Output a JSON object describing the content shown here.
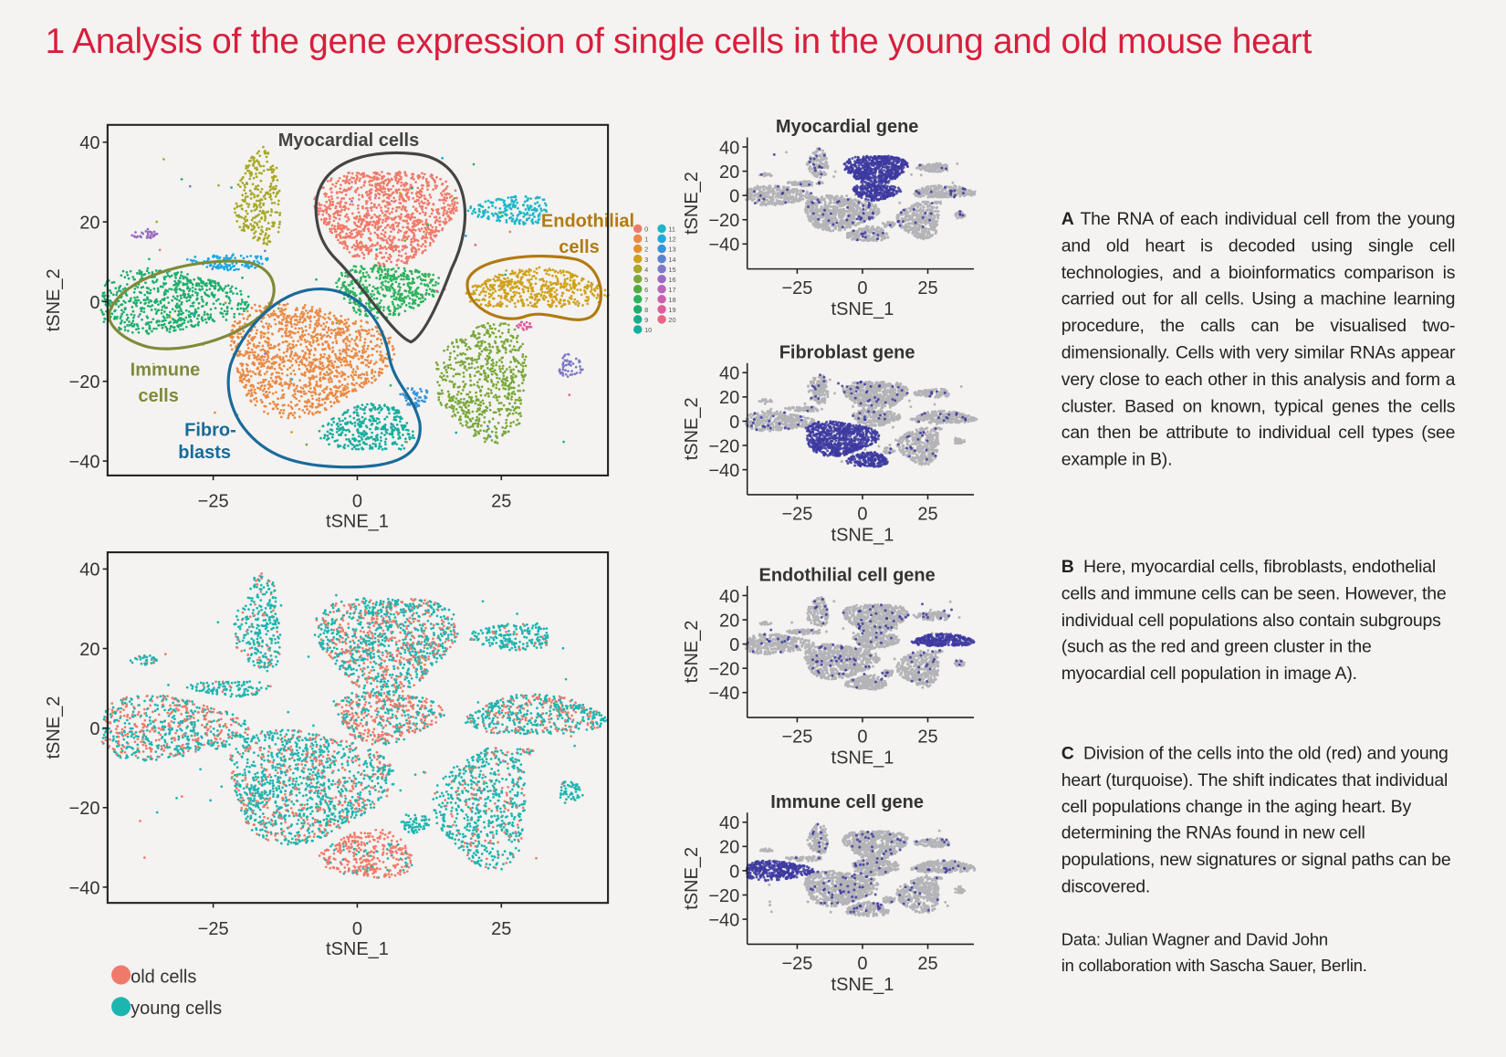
{
  "title": "1 Analysis of the gene expression of single cells in the young and old mouse heart",
  "text": {
    "a_label": "A",
    "a_body": "The RNA of each individual cell from the young and old heart is decoded using single cell technologies, and a bioinformatics comparison is carried out for all cells. Using a machine learning procedure, the calls can be visualised two-dimensionally. Cells with very similar RNAs appear very close to each other in this analysis and form a cluster. Based on known, typical genes the cells can then be attribute to individual cell types (see example in B).",
    "b_label": "B",
    "b_body": "Here, myocardial cells, fibroblasts, endothelial cells and immune cells can be seen. However, the individual cell populations also contain subgroups (such as the red and green cluster in the myocardial cell population in image A).",
    "c_label": "C",
    "c_body": "Division of the cells into the old (red) and young heart (turquoise). The shift indicates that individual cell populations change in the aging heart. By determining the RNAs found in new cell populations, new signatures or signal paths can be discovered.",
    "credit_1": "Data: Julian Wagner and David John",
    "credit_2": "in collaboration with Sascha Sauer, Berlin."
  },
  "colors": {
    "title": "#d81e3c",
    "old": "#f07a6a",
    "young": "#1db5b0",
    "highlight": "#3d3aa0",
    "background_points": "#b4b4b8"
  },
  "chart_data": [
    {
      "id": "A",
      "type": "scatter",
      "xlabel": "tSNE_1",
      "ylabel": "tSNE_2",
      "xlim": [
        -43,
        44
      ],
      "ylim": [
        -44,
        44
      ],
      "xticks": [
        "-25",
        "0",
        "25"
      ],
      "xtick_values": [
        -25,
        0,
        25
      ],
      "yticks": [
        "40",
        "20",
        "0",
        "-20",
        "-40"
      ],
      "ytick_values": [
        40,
        20,
        0,
        -20,
        -40
      ],
      "annotations": {
        "myocardial": "Myocardial cells",
        "endo_1": "Endothilial",
        "endo_2": "cells",
        "immune_1": "Immune",
        "immune_2": "cells",
        "fibro_1": "Fibro-",
        "fibro_2": "blasts"
      },
      "legend": {
        "labels": [
          "0",
          "1",
          "2",
          "3",
          "4",
          "5",
          "6",
          "7",
          "8",
          "9",
          "10",
          "11",
          "12",
          "13",
          "14",
          "15",
          "16",
          "17",
          "18",
          "19",
          "20"
        ],
        "colors": [
          "#f07a6a",
          "#ea8a45",
          "#e0922c",
          "#cfa11c",
          "#a8a829",
          "#7aa83a",
          "#50ac3e",
          "#2db35e",
          "#1fae6e",
          "#19ad88",
          "#17ad9e",
          "#1db6c8",
          "#1ea9e0",
          "#3a93d8",
          "#5c83d0",
          "#7d7ac4",
          "#9a6cc4",
          "#b766be",
          "#cc5fae",
          "#e05c9c",
          "#ec6484"
        ]
      },
      "clusters": [
        {
          "id": 0,
          "cx": 5,
          "cy": 22,
          "rx": 12,
          "ry": 12,
          "n": 1100,
          "old": 0.35
        },
        {
          "id": 7,
          "cx": 5,
          "cy": 3,
          "rx": 9,
          "ry": 6.5,
          "n": 450,
          "old": 0.55
        },
        {
          "id": 1,
          "cx": -9,
          "cy": -14,
          "rx": 14,
          "ry": 14,
          "n": 1300,
          "old": 0.3
        },
        {
          "id": 10,
          "cx": 2,
          "cy": -32,
          "rx": 8,
          "ry": 6,
          "n": 350,
          "old": 0.85
        },
        {
          "id": 8,
          "cx": -33,
          "cy": 0,
          "rx": 13,
          "ry": 8,
          "n": 650,
          "old": 0.45
        },
        {
          "id": 3,
          "cx": 31,
          "cy": 3,
          "rx": 12,
          "ry": 5,
          "n": 500,
          "old": 0.3
        },
        {
          "id": 5,
          "cx": 22,
          "cy": -20,
          "rx": 8,
          "ry": 15,
          "n": 650,
          "old": 0.2
        },
        {
          "id": 4,
          "cx": -17,
          "cy": 26,
          "rx": 4,
          "ry": 12,
          "n": 280,
          "old": 0.15
        },
        {
          "id": 11,
          "cx": 27,
          "cy": 23,
          "rx": 7,
          "ry": 3.5,
          "n": 200,
          "old": 0.1
        },
        {
          "id": 12,
          "cx": -22,
          "cy": 10,
          "rx": 7,
          "ry": 2,
          "n": 120,
          "old": 0.1
        },
        {
          "id": 15,
          "cx": 37,
          "cy": -16,
          "rx": 2,
          "ry": 3,
          "n": 50,
          "old": 0.1
        },
        {
          "id": 16,
          "cx": -37,
          "cy": 17,
          "rx": 2.5,
          "ry": 1.2,
          "n": 30,
          "old": 0.1
        },
        {
          "id": 13,
          "cx": 10,
          "cy": -24,
          "rx": 2.5,
          "ry": 2.5,
          "n": 60,
          "old": 0.1
        },
        {
          "id": 19,
          "cx": 29,
          "cy": -6,
          "rx": 1.5,
          "ry": 1,
          "n": 20,
          "old": 0.5
        }
      ]
    },
    {
      "id": "C",
      "type": "scatter",
      "xlabel": "tSNE_1",
      "ylabel": "tSNE_2",
      "xticks": [
        "-25",
        "0",
        "25"
      ],
      "yticks": [
        "40",
        "20",
        "0",
        "-20",
        "-40"
      ],
      "legend": [
        {
          "label": "old cells",
          "color": "#f07a6a"
        },
        {
          "label": "young cells",
          "color": "#1db5b0"
        }
      ]
    },
    {
      "id": "B1",
      "type": "scatter",
      "title": "Myocardial gene",
      "highlight_cluster": [
        0,
        7
      ],
      "xlabel": "tSNE_1",
      "ylabel": "tSNE_2",
      "xticks": [
        "-25",
        "0",
        "25"
      ],
      "yticks": [
        "40",
        "20",
        "0",
        "-20",
        "-40"
      ]
    },
    {
      "id": "B2",
      "type": "scatter",
      "title": "Fibroblast gene",
      "highlight_cluster": [
        1,
        10
      ],
      "xlabel": "tSNE_1",
      "ylabel": "tSNE_2",
      "xticks": [
        "-25",
        "0",
        "25"
      ],
      "yticks": [
        "40",
        "20",
        "0",
        "-20",
        "-40"
      ]
    },
    {
      "id": "B3",
      "type": "scatter",
      "title": "Endothilial cell gene",
      "highlight_cluster": [
        3
      ],
      "xlabel": "tSNE_1",
      "ylabel": "tSNE_2",
      "xticks": [
        "-25",
        "0",
        "25"
      ],
      "yticks": [
        "40",
        "20",
        "0",
        "-20",
        "-40"
      ]
    },
    {
      "id": "B4",
      "type": "scatter",
      "title": "Immune cell gene",
      "highlight_cluster": [
        8
      ],
      "xlabel": "tSNE_1",
      "ylabel": "tSNE_2",
      "xticks": [
        "-25",
        "0",
        "25"
      ],
      "yticks": [
        "40",
        "20",
        "0",
        "-20",
        "-40"
      ]
    }
  ]
}
